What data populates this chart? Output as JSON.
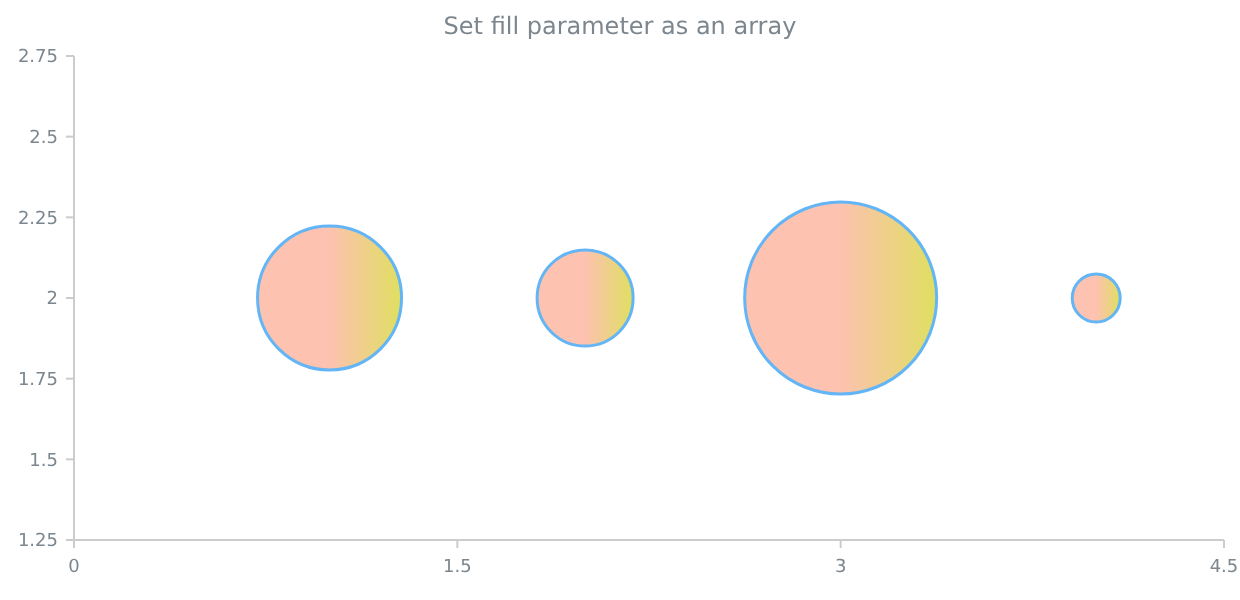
{
  "chart_data": {
    "type": "bubble",
    "title": "Set fill parameter as an array",
    "x": [
      1,
      2,
      3,
      4
    ],
    "series": [
      {
        "color": "#64b5f6",
        "values": [
          2,
          2,
          2,
          2
        ],
        "sizes": [
          0.5625,
          0.25,
          1,
          0.0625
        ]
      }
    ],
    "xlim": [
      0,
      4.5
    ],
    "xticks": [
      0,
      1.5,
      3,
      4.5
    ],
    "ylim": [
      1.25,
      2.75
    ],
    "yticks": [
      1.25,
      1.5,
      1.75,
      2,
      2.25,
      2.5,
      2.75
    ],
    "grid": false
  }
}
